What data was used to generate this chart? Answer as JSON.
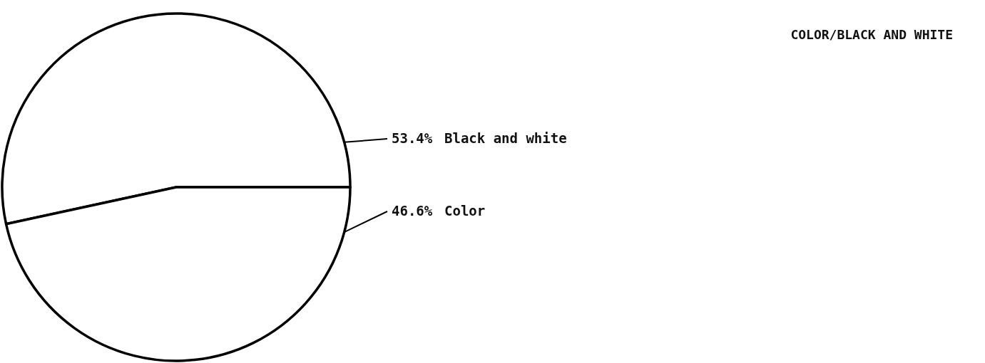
{
  "chart_data": {
    "type": "pie",
    "title": "COLOR/BLACK AND WHITE",
    "categories": [
      "Black and white",
      "Color"
    ],
    "values": [
      53.4,
      46.6
    ],
    "value_labels": [
      "53.4%",
      "46.6%"
    ],
    "colors": [
      "#ffffff",
      "#ffffff"
    ]
  }
}
